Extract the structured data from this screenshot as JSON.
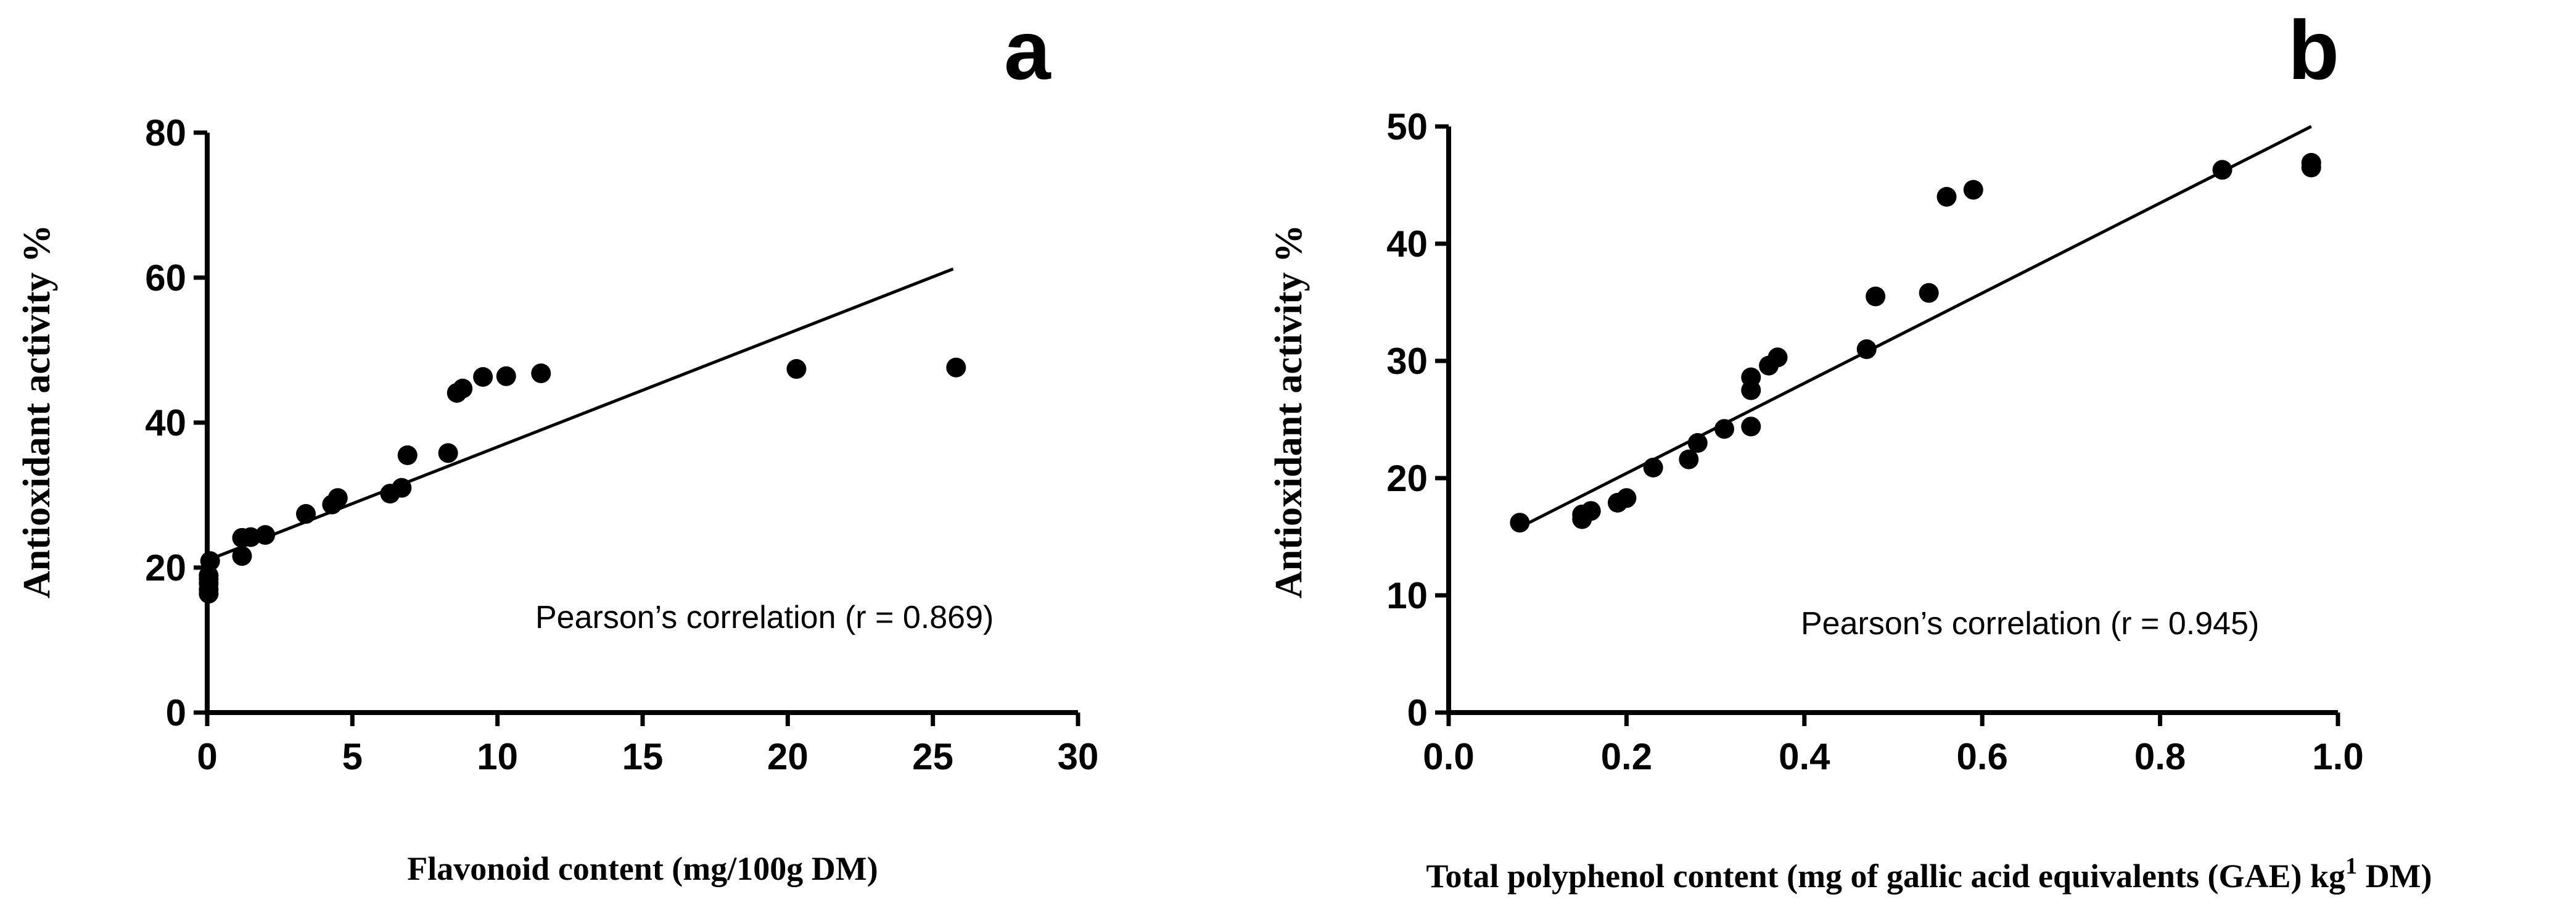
{
  "chart_data": [
    {
      "type": "scatter",
      "panel_label": "a",
      "xlabel": "Flavonoid content (mg/100g DM)",
      "ylabel": "Antioxidant activity %",
      "xlim": [
        0,
        30
      ],
      "ylim": [
        0,
        80
      ],
      "xticks": [
        0,
        5,
        10,
        15,
        20,
        25,
        30
      ],
      "yticks": [
        0,
        20,
        40,
        60,
        80
      ],
      "x_tick_labels": [
        "0",
        "5",
        "10",
        "15",
        "20",
        "25",
        "30"
      ],
      "y_tick_labels": [
        "0",
        "20",
        "40",
        "60",
        "80"
      ],
      "grid": false,
      "annotation": "Pearson’s correlation  (r = 0.869)",
      "trendline": {
        "x": [
          0,
          25.7
        ],
        "y": [
          21.0,
          61.2
        ]
      },
      "points": {
        "x": [
          0.05,
          0.05,
          0.05,
          0.05,
          0.05,
          0.1,
          1.2,
          1.2,
          1.5,
          2.0,
          3.4,
          4.3,
          4.5,
          6.3,
          6.7,
          6.9,
          8.3,
          8.6,
          8.8,
          9.5,
          10.3,
          11.5,
          20.3,
          25.8
        ],
        "y": [
          16.4,
          17.0,
          17.8,
          18.4,
          18.9,
          20.9,
          21.6,
          24.1,
          24.2,
          24.5,
          27.4,
          28.7,
          29.6,
          30.2,
          31.0,
          35.5,
          35.8,
          44.1,
          44.7,
          46.3,
          46.4,
          46.8,
          47.4,
          47.6
        ]
      }
    },
    {
      "type": "scatter",
      "panel_label": "b",
      "xlabel": "Total polyphenol content (mg of gallic acid equivalents (GAE) kg",
      "xlabel_superscript": "1",
      "xlabel_suffix": " DM)",
      "ylabel": "Antioxidant activity %",
      "xlim": [
        0.0,
        1.0
      ],
      "ylim": [
        0,
        50
      ],
      "xticks": [
        0.0,
        0.2,
        0.4,
        0.6,
        0.8,
        1.0
      ],
      "yticks": [
        0,
        10,
        20,
        30,
        40,
        50
      ],
      "x_tick_labels": [
        "0.0",
        "0.2",
        "0.4",
        "0.6",
        "0.8",
        "1.0"
      ],
      "y_tick_labels": [
        "0",
        "10",
        "20",
        "30",
        "40",
        "50"
      ],
      "grid": false,
      "annotation": "Pearson’s correlation  (r = 0.945)",
      "trendline": {
        "x": [
          0.08,
          0.97
        ],
        "y": [
          15.8,
          50.0
        ]
      },
      "points": {
        "x": [
          0.08,
          0.15,
          0.15,
          0.16,
          0.19,
          0.2,
          0.23,
          0.27,
          0.28,
          0.31,
          0.34,
          0.34,
          0.34,
          0.36,
          0.37,
          0.47,
          0.48,
          0.54,
          0.56,
          0.59,
          0.87,
          0.97,
          0.97
        ],
        "y": [
          16.2,
          16.5,
          16.9,
          17.2,
          17.9,
          18.3,
          20.9,
          21.6,
          23.0,
          24.2,
          24.4,
          27.5,
          28.6,
          29.6,
          30.3,
          31.0,
          35.5,
          35.8,
          44.0,
          44.6,
          46.3,
          46.5,
          46.9
        ]
      }
    }
  ]
}
